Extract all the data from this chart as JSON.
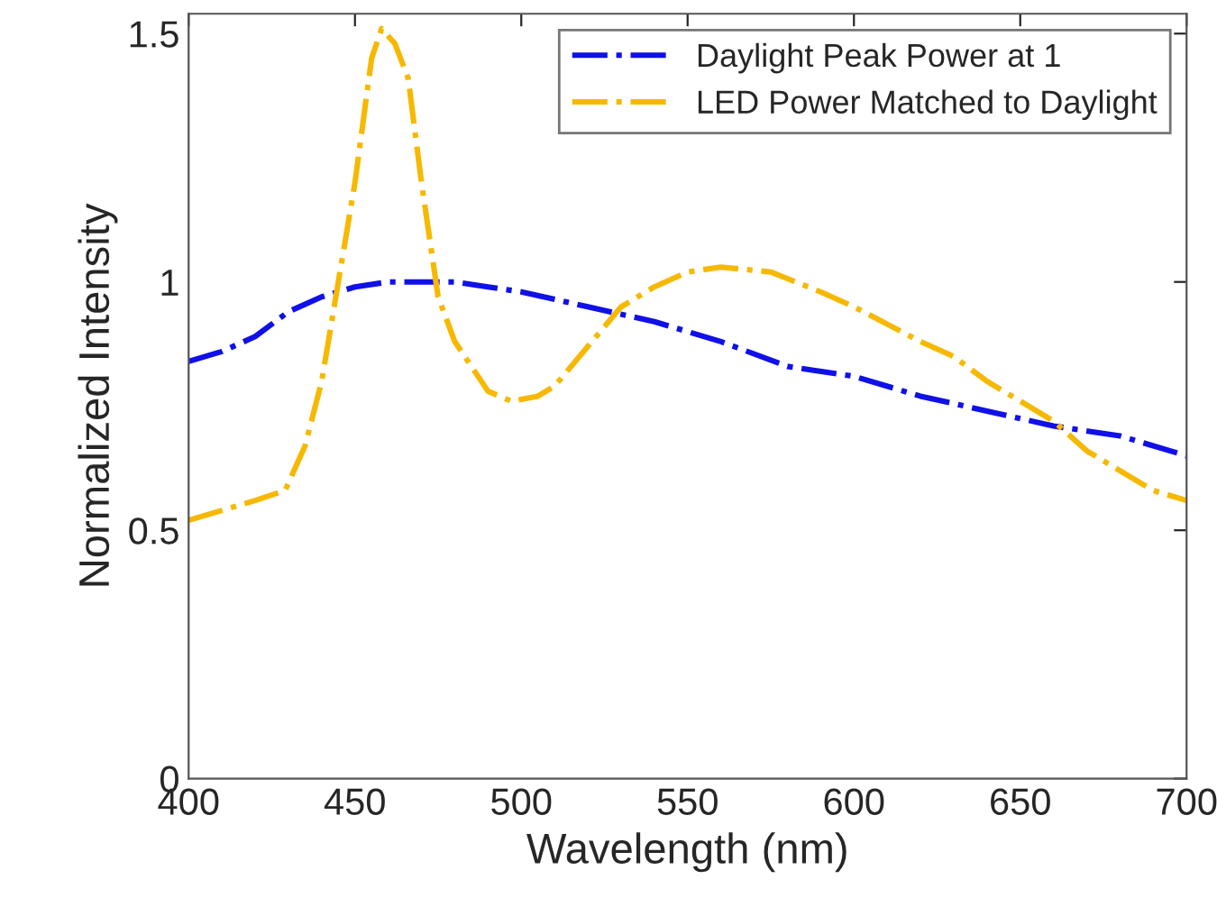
{
  "chart_data": {
    "type": "line",
    "xlabel": "Wavelength (nm)",
    "ylabel": "Normalized Intensity",
    "xlim": [
      400,
      700
    ],
    "xticks": [
      400,
      450,
      500,
      550,
      600,
      650,
      700
    ],
    "ylim": [
      0,
      1.54
    ],
    "yticks": [
      0,
      0.5,
      1,
      1.5
    ],
    "grid": false,
    "legend": "top right",
    "line_style": "dashdot",
    "marker": "none",
    "series": [
      {
        "name": "Daylight Peak Power at 1",
        "color": "#1010e8",
        "x": [
          400,
          410,
          420,
          430,
          440,
          450,
          460,
          470,
          480,
          490,
          500,
          520,
          540,
          560,
          580,
          600,
          620,
          640,
          660,
          680,
          700
        ],
        "values": [
          0.84,
          0.86,
          0.89,
          0.94,
          0.97,
          0.99,
          1.0,
          1.0,
          1.0,
          0.99,
          0.98,
          0.95,
          0.92,
          0.88,
          0.83,
          0.81,
          0.77,
          0.74,
          0.71,
          0.69,
          0.65
        ]
      },
      {
        "name": "LED Power Matched to Daylight",
        "color": "#f7b800",
        "x": [
          400,
          410,
          420,
          429,
          435,
          440,
          445,
          450,
          455,
          458,
          462,
          466,
          470,
          475,
          480,
          490,
          497,
          505,
          510,
          520,
          530,
          540,
          550,
          560,
          575,
          590,
          600,
          620,
          630,
          640,
          650,
          660,
          670,
          680,
          690,
          700
        ],
        "values": [
          0.52,
          0.54,
          0.56,
          0.58,
          0.67,
          0.8,
          1.0,
          1.2,
          1.45,
          1.51,
          1.48,
          1.41,
          1.2,
          0.97,
          0.88,
          0.78,
          0.76,
          0.77,
          0.79,
          0.87,
          0.95,
          0.99,
          1.02,
          1.03,
          1.02,
          0.98,
          0.95,
          0.88,
          0.85,
          0.8,
          0.76,
          0.72,
          0.66,
          0.62,
          0.58,
          0.56
        ]
      }
    ]
  }
}
